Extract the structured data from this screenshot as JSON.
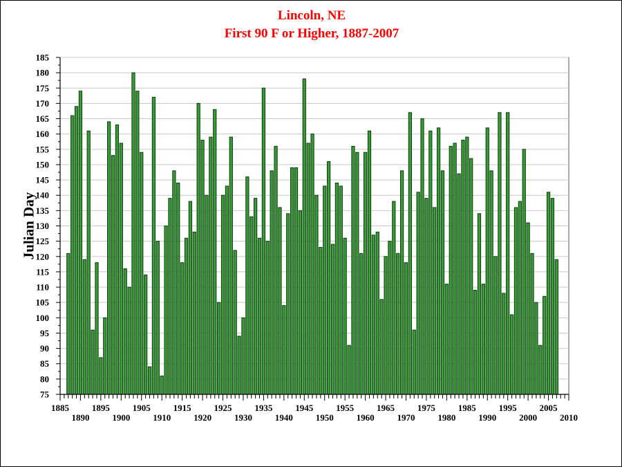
{
  "chart_data": {
    "type": "bar",
    "title": "Lincoln, NE",
    "subtitle": "First 90 F or Higher, 1887-2007",
    "xlabel": "",
    "ylabel": "Julian Day",
    "xlim": [
      1885,
      2010
    ],
    "ylim": [
      75,
      185
    ],
    "y_ticks": [
      "75",
      "80",
      "85",
      "90",
      "95",
      "100",
      "105",
      "110",
      "115",
      "120",
      "125",
      "130",
      "135",
      "140",
      "145",
      "150",
      "155",
      "160",
      "165",
      "170",
      "175",
      "180",
      "185"
    ],
    "x_ticks_upper": [
      "1885",
      "1895",
      "1905",
      "1915",
      "1925",
      "1935",
      "1945",
      "1955",
      "1965",
      "1975",
      "1985",
      "1995",
      "2005"
    ],
    "x_ticks_lower": [
      "1890",
      "1900",
      "1910",
      "1920",
      "1930",
      "1940",
      "1950",
      "1960",
      "1970",
      "1980",
      "1990",
      "2000",
      "2010"
    ],
    "grid": "horizontal",
    "colors": {
      "bar_fill": "#3a9a3a",
      "bar_edge": "#0b3d0b",
      "title": "#ff0000",
      "grid": "#c8c8c8"
    },
    "x": [
      1887,
      1888,
      1889,
      1890,
      1891,
      1892,
      1893,
      1894,
      1895,
      1896,
      1897,
      1898,
      1899,
      1900,
      1901,
      1902,
      1903,
      1904,
      1905,
      1906,
      1907,
      1908,
      1909,
      1910,
      1911,
      1912,
      1913,
      1914,
      1915,
      1916,
      1917,
      1918,
      1919,
      1920,
      1921,
      1922,
      1923,
      1924,
      1925,
      1926,
      1927,
      1928,
      1929,
      1930,
      1931,
      1932,
      1933,
      1934,
      1935,
      1936,
      1937,
      1938,
      1939,
      1940,
      1941,
      1942,
      1943,
      1944,
      1945,
      1946,
      1947,
      1948,
      1949,
      1950,
      1951,
      1952,
      1953,
      1954,
      1955,
      1956,
      1957,
      1958,
      1959,
      1960,
      1961,
      1962,
      1963,
      1964,
      1965,
      1966,
      1967,
      1968,
      1969,
      1970,
      1971,
      1972,
      1973,
      1974,
      1975,
      1976,
      1977,
      1978,
      1979,
      1980,
      1981,
      1982,
      1983,
      1984,
      1985,
      1986,
      1987,
      1988,
      1989,
      1990,
      1991,
      1992,
      1993,
      1994,
      1995,
      1996,
      1997,
      1998,
      1999,
      2000,
      2001,
      2002,
      2003,
      2004,
      2005,
      2006,
      2007
    ],
    "values": [
      121,
      166,
      169,
      174,
      119,
      161,
      96,
      118,
      87,
      100,
      164,
      153,
      163,
      157,
      116,
      110,
      180,
      174,
      154,
      114,
      84,
      172,
      125,
      81,
      130,
      139,
      148,
      144,
      118,
      126,
      138,
      128,
      170,
      158,
      140,
      159,
      168,
      105,
      140,
      143,
      159,
      122,
      94,
      100,
      146,
      133,
      139,
      126,
      175,
      125,
      148,
      156,
      136,
      104,
      134,
      149,
      149,
      135,
      178,
      157,
      160,
      140,
      123,
      143,
      151,
      124,
      144,
      143,
      126,
      91,
      156,
      154,
      121,
      154,
      161,
      127,
      128,
      106,
      120,
      125,
      138,
      121,
      148,
      118,
      167,
      96,
      141,
      165,
      139,
      161,
      136,
      162,
      148,
      111,
      156,
      157,
      147,
      158,
      159,
      152,
      109,
      134,
      111,
      162,
      148,
      120,
      167,
      108,
      167,
      101,
      136,
      138,
      155,
      131,
      121,
      105,
      91,
      107,
      141,
      139,
      119
    ]
  }
}
